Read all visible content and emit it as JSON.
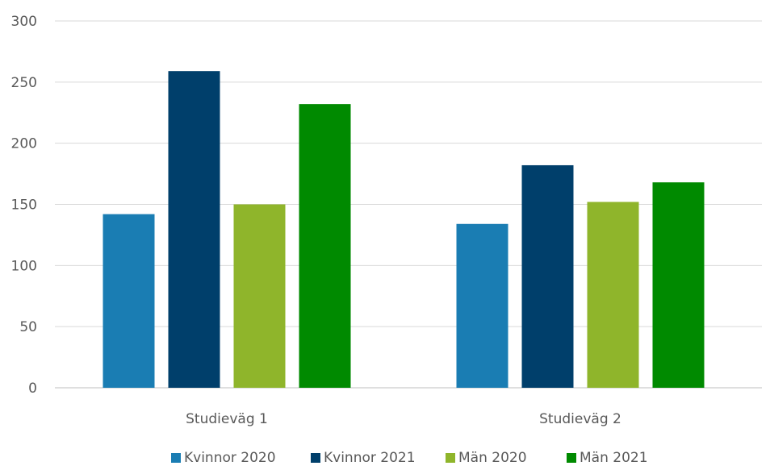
{
  "chart_data": {
    "type": "bar",
    "categories": [
      "Studieväg 1",
      "Studieväg 2"
    ],
    "series": [
      {
        "name": "Kvinnor 2020",
        "values": [
          142,
          134
        ],
        "color": "#1a7db3"
      },
      {
        "name": "Kvinnor 2021",
        "values": [
          259,
          182
        ],
        "color": "#003f6b"
      },
      {
        "name": "Män 2020",
        "values": [
          150,
          152
        ],
        "color": "#8fb52b"
      },
      {
        "name": "Män 2021",
        "values": [
          232,
          168
        ],
        "color": "#008a00"
      }
    ],
    "ylim": [
      0,
      300
    ],
    "yticks": [
      "0",
      "50",
      "100",
      "150",
      "200",
      "250",
      "300"
    ],
    "grid": true,
    "legend_position": "bottom"
  }
}
